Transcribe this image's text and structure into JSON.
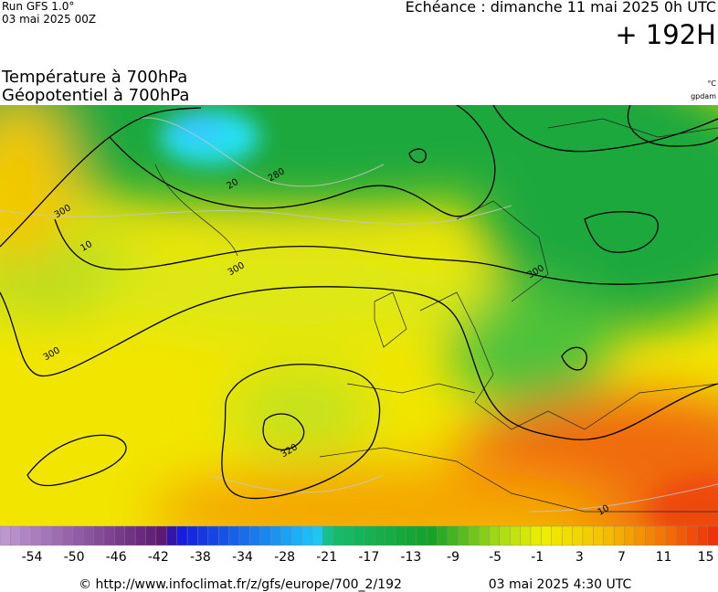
{
  "header": {
    "run": "Run GFS 1.0°",
    "run_date": "03 mai 2025 00Z",
    "valid": "Echéance : dimanche 11 mai 2025 0h UTC",
    "lead": "+ 192H"
  },
  "titles": {
    "line1": "Température à 700hPa",
    "line2": "Géopotentiel à 700hPa",
    "unit_temp": "°C",
    "unit_geo": "gpdam"
  },
  "map": {
    "contour_labels": [
      "300",
      "280",
      "300",
      "300",
      "320",
      "300",
      "10",
      "20",
      "10"
    ]
  },
  "colorbar": {
    "labels": [
      -54,
      -50,
      -46,
      -42,
      -38,
      -34,
      -28,
      -21,
      -17,
      -13,
      -9,
      -5,
      -1,
      3,
      7,
      11,
      15
    ]
  },
  "footer": {
    "source": "© http://www.infoclimat.fr/z/gfs/europe/700_2/192",
    "issued": "03 mai 2025  4:30 UTC"
  }
}
